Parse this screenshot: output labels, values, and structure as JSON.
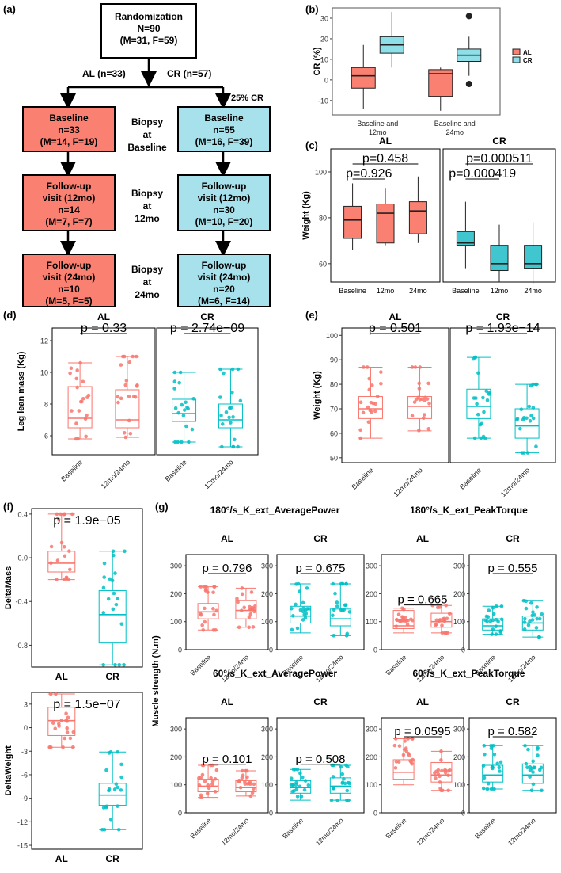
{
  "panel_labels": {
    "a": "(a)",
    "b": "(b)",
    "c": "(c)",
    "d": "(d)",
    "e": "(e)",
    "f": "(f)",
    "g": "(g)"
  },
  "flow": {
    "rand": {
      "l1": "Randomization",
      "l2": "N=90",
      "l3": "(M=31,  F=59)"
    },
    "arm_al": "AL (n=33)",
    "arm_cr": "CR (n=57)",
    "pct": "25% CR",
    "al_base": {
      "l1": "Baseline",
      "l2": "n=33",
      "l3": "(M=14,  F=19)"
    },
    "cr_base": {
      "l1": "Baseline",
      "l2": "n=55",
      "l3": "(M=16,  F=39)"
    },
    "al_12": {
      "l1": "Follow-up",
      "l2": "visit (12mo)",
      "l3": "n=14",
      "l4": "(M=7,  F=7)"
    },
    "cr_12": {
      "l1": "Follow-up",
      "l2": "visit (12mo)",
      "l3": "n=30",
      "l4": "(M=10,  F=20)"
    },
    "al_24": {
      "l1": "Follow-up",
      "l2": "visit (24mo)",
      "l3": "n=10",
      "l4": "(M=5,  F=5)"
    },
    "cr_24": {
      "l1": "Follow-up",
      "l2": "visit (24mo)",
      "l3": "n=20",
      "l4": "(M=6,  F=14)"
    },
    "biopsy_base": {
      "l1": "Biopsy",
      "l2": "at",
      "l3": "Baseline"
    },
    "biopsy_12": {
      "l1": "Biopsy",
      "l2": "at",
      "l3": "12mo"
    },
    "biopsy_24": {
      "l1": "Biopsy",
      "l2": "at",
      "l3": "24mo"
    }
  },
  "colors": {
    "al": "#f8766d",
    "cr": "#00bfc4",
    "al_fill": "#f8766d",
    "cr_fill": "#4ec9cf",
    "box_al": "#fa8072",
    "box_cr": "#8fdfe8"
  },
  "chart_data": [
    {
      "id": "b",
      "type": "box",
      "ylabel": "CR (%)",
      "ylim": [
        -17,
        35
      ],
      "yticks": [
        -10,
        0,
        10,
        20,
        30
      ],
      "categories": [
        "Baseline and 12mo",
        "Baseline and 24mo"
      ],
      "legend": [
        "AL",
        "CR"
      ],
      "boxes": [
        {
          "cat": 0,
          "group": "AL",
          "min": -14,
          "q1": -4,
          "med": 2,
          "q3": 6,
          "max": 17,
          "out": []
        },
        {
          "cat": 0,
          "group": "CR",
          "min": 6,
          "q1": 13,
          "med": 17,
          "q3": 21,
          "max": 33,
          "out": []
        },
        {
          "cat": 1,
          "group": "AL",
          "min": -15,
          "q1": -8,
          "med": 3,
          "q3": 5,
          "max": 6,
          "out": []
        },
        {
          "cat": 1,
          "group": "CR",
          "min": 2,
          "q1": 9,
          "med": 12,
          "q3": 15,
          "max": 21,
          "out": [
            31,
            -2
          ]
        }
      ]
    },
    {
      "id": "c",
      "type": "box",
      "ylabel": "Weight (Kg)",
      "ylim": [
        52,
        110
      ],
      "yticks": [
        60,
        80,
        100
      ],
      "facets": [
        "AL",
        "CR"
      ],
      "categories": [
        "Baseline",
        "12mo",
        "24mo"
      ],
      "pvalues": [
        {
          "facet": "AL",
          "text": "p=0.458"
        },
        {
          "facet": "AL",
          "text": "p=0.926"
        },
        {
          "facet": "CR",
          "text": "p=0.000511"
        },
        {
          "facet": "CR",
          "text": "p=0.000419"
        }
      ],
      "boxes": [
        {
          "facet": "AL",
          "cat": 0,
          "min": 66,
          "q1": 71,
          "med": 79,
          "q3": 85,
          "max": 95
        },
        {
          "facet": "AL",
          "cat": 1,
          "min": 68,
          "q1": 69,
          "med": 82,
          "q3": 86,
          "max": 93
        },
        {
          "facet": "AL",
          "cat": 2,
          "min": 69,
          "q1": 73,
          "med": 83,
          "q3": 87,
          "max": 98
        },
        {
          "facet": "CR",
          "cat": 0,
          "min": 58,
          "q1": 68,
          "med": 69,
          "q3": 74,
          "max": 87
        },
        {
          "facet": "CR",
          "cat": 1,
          "min": 52,
          "q1": 57,
          "med": 60,
          "q3": 68,
          "max": 77
        },
        {
          "facet": "CR",
          "cat": 2,
          "min": 51,
          "q1": 58,
          "med": 60,
          "q3": 68,
          "max": 78
        }
      ]
    },
    {
      "id": "d",
      "type": "box",
      "ylabel": "Leg lean mass (Kg)",
      "ylim": [
        4.8,
        12.8
      ],
      "yticks": [
        6,
        8,
        10,
        12
      ],
      "facets": [
        "AL",
        "CR"
      ],
      "categories": [
        "Baseline",
        "12mo/24mo"
      ],
      "pvalues": [
        {
          "facet": "AL",
          "text": "p = 0.33"
        },
        {
          "facet": "CR",
          "text": "p = 2.74e−09"
        }
      ],
      "boxes": [
        {
          "facet": "AL",
          "cat": 0,
          "min": 5.8,
          "q1": 6.5,
          "med": 7.1,
          "q3": 9.1,
          "max": 10.6
        },
        {
          "facet": "AL",
          "cat": 1,
          "min": 5.9,
          "q1": 6.5,
          "med": 7.0,
          "q3": 8.9,
          "max": 11.0
        },
        {
          "facet": "CR",
          "cat": 0,
          "min": 5.6,
          "q1": 6.9,
          "med": 7.4,
          "q3": 8.3,
          "max": 10.0
        },
        {
          "facet": "CR",
          "cat": 1,
          "min": 5.3,
          "q1": 6.5,
          "med": 7.0,
          "q3": 8.0,
          "max": 10.2
        }
      ]
    },
    {
      "id": "e",
      "type": "box",
      "ylabel": "Weight (Kg)",
      "ylim": [
        48,
        103
      ],
      "yticks": [
        50,
        60,
        70,
        80,
        90,
        100
      ],
      "facets": [
        "AL",
        "CR"
      ],
      "categories": [
        "Baseline",
        "12mo/24mo"
      ],
      "pvalues": [
        {
          "facet": "AL",
          "text": "p = 0.501"
        },
        {
          "facet": "CR",
          "text": "p = 1.93e−14"
        }
      ],
      "boxes": [
        {
          "facet": "AL",
          "cat": 0,
          "min": 58,
          "q1": 66,
          "med": 70,
          "q3": 75,
          "max": 87
        },
        {
          "facet": "AL",
          "cat": 1,
          "min": 61,
          "q1": 66,
          "med": 71,
          "q3": 75,
          "max": 87
        },
        {
          "facet": "CR",
          "cat": 0,
          "min": 58,
          "q1": 66,
          "med": 71,
          "q3": 78,
          "max": 91
        },
        {
          "facet": "CR",
          "cat": 1,
          "min": 52,
          "q1": 58,
          "med": 63,
          "q3": 70,
          "max": 80
        }
      ]
    },
    {
      "id": "f1",
      "type": "box",
      "ylabel": "DeltaMass",
      "ylim": [
        -1.0,
        0.45
      ],
      "yticks": [
        0.4,
        0.0,
        -0.4,
        -0.8
      ],
      "yticklabels": [
        "0.4",
        "0.0",
        "-0.4",
        "-0.8"
      ],
      "categories": [
        "AL",
        "CR"
      ],
      "pvalue": "p = 1.9e−05",
      "boxes": [
        {
          "cat": 0,
          "min": -0.2,
          "q1": -0.13,
          "med": -0.05,
          "q3": 0.06,
          "max": 0.4
        },
        {
          "cat": 1,
          "min": -0.98,
          "q1": -0.78,
          "med": -0.52,
          "q3": -0.3,
          "max": 0.06
        }
      ]
    },
    {
      "id": "f2",
      "type": "box",
      "ylabel": "DeltaWeight",
      "ylim": [
        -15.5,
        4.5
      ],
      "yticks": [
        3,
        0,
        -3,
        -6,
        -9,
        -12,
        -15
      ],
      "yticklabels": [
        "3",
        "0",
        "-3",
        "-6",
        "-9",
        "-12",
        "-15"
      ],
      "categories": [
        "AL",
        "CR"
      ],
      "pvalue": "p = 1.5e−07",
      "boxes": [
        {
          "cat": 0,
          "min": -2.5,
          "q1": -1.0,
          "med": 0.9,
          "q3": 2.6,
          "max": 4.3
        },
        {
          "cat": 1,
          "min": -13,
          "q1": -9.9,
          "med": -8.6,
          "q3": -7.1,
          "max": -3.1
        }
      ]
    },
    {
      "id": "g",
      "type": "box",
      "ylabel": "Muscle strength (N.m)",
      "ylim": [
        0,
        340
      ],
      "yticks": [
        0,
        100,
        200,
        300
      ],
      "categories": [
        "Baseline",
        "12mo/24mo"
      ],
      "titles": [
        "180°/s_K_ext_AveragePower",
        "180°/s_K_ext_PeakTorque",
        "60°/s_K_ext_AveragePower",
        "60°/s_K_ext_PeakTorque"
      ],
      "panels": [
        {
          "title": 0,
          "facet": "AL",
          "p": "p = 0.796",
          "boxes": [
            [
              70,
              110,
              135,
              165,
              225
            ],
            [
              80,
              110,
              140,
              175,
              220
            ]
          ]
        },
        {
          "title": 0,
          "facet": "CR",
          "p": "p = 0.675",
          "boxes": [
            [
              60,
              95,
              120,
              155,
              235
            ],
            [
              50,
              85,
              110,
              145,
              235
            ]
          ]
        },
        {
          "title": 1,
          "facet": "AL",
          "p": "p = 0.665",
          "boxes": [
            [
              60,
              75,
              85,
              140,
              148
            ],
            [
              60,
              80,
              100,
              130,
              158
            ]
          ]
        },
        {
          "title": 1,
          "facet": "CR",
          "p": "p = 0.555",
          "boxes": [
            [
              55,
              70,
              85,
              110,
              155
            ],
            [
              45,
              70,
              95,
              120,
              175
            ]
          ]
        },
        {
          "title": 2,
          "facet": "AL",
          "p": "p = 0.101",
          "boxes": [
            [
              55,
              75,
              95,
              120,
              170
            ],
            [
              60,
              75,
              90,
              115,
              150
            ]
          ]
        },
        {
          "title": 2,
          "facet": "CR",
          "p": "p = 0.508",
          "boxes": [
            [
              45,
              70,
              90,
              115,
              155
            ],
            [
              45,
              70,
              95,
              125,
              170
            ]
          ]
        },
        {
          "title": 3,
          "facet": "AL",
          "p": "p = 0.0595",
          "boxes": [
            [
              100,
              120,
              145,
              190,
              265
            ],
            [
              80,
              110,
              135,
              180,
              220
            ]
          ]
        },
        {
          "title": 3,
          "facet": "CR",
          "p": "p = 0.582",
          "boxes": [
            [
              85,
              110,
              135,
              170,
              240
            ],
            [
              80,
              105,
              135,
              175,
              240
            ]
          ]
        }
      ]
    }
  ]
}
